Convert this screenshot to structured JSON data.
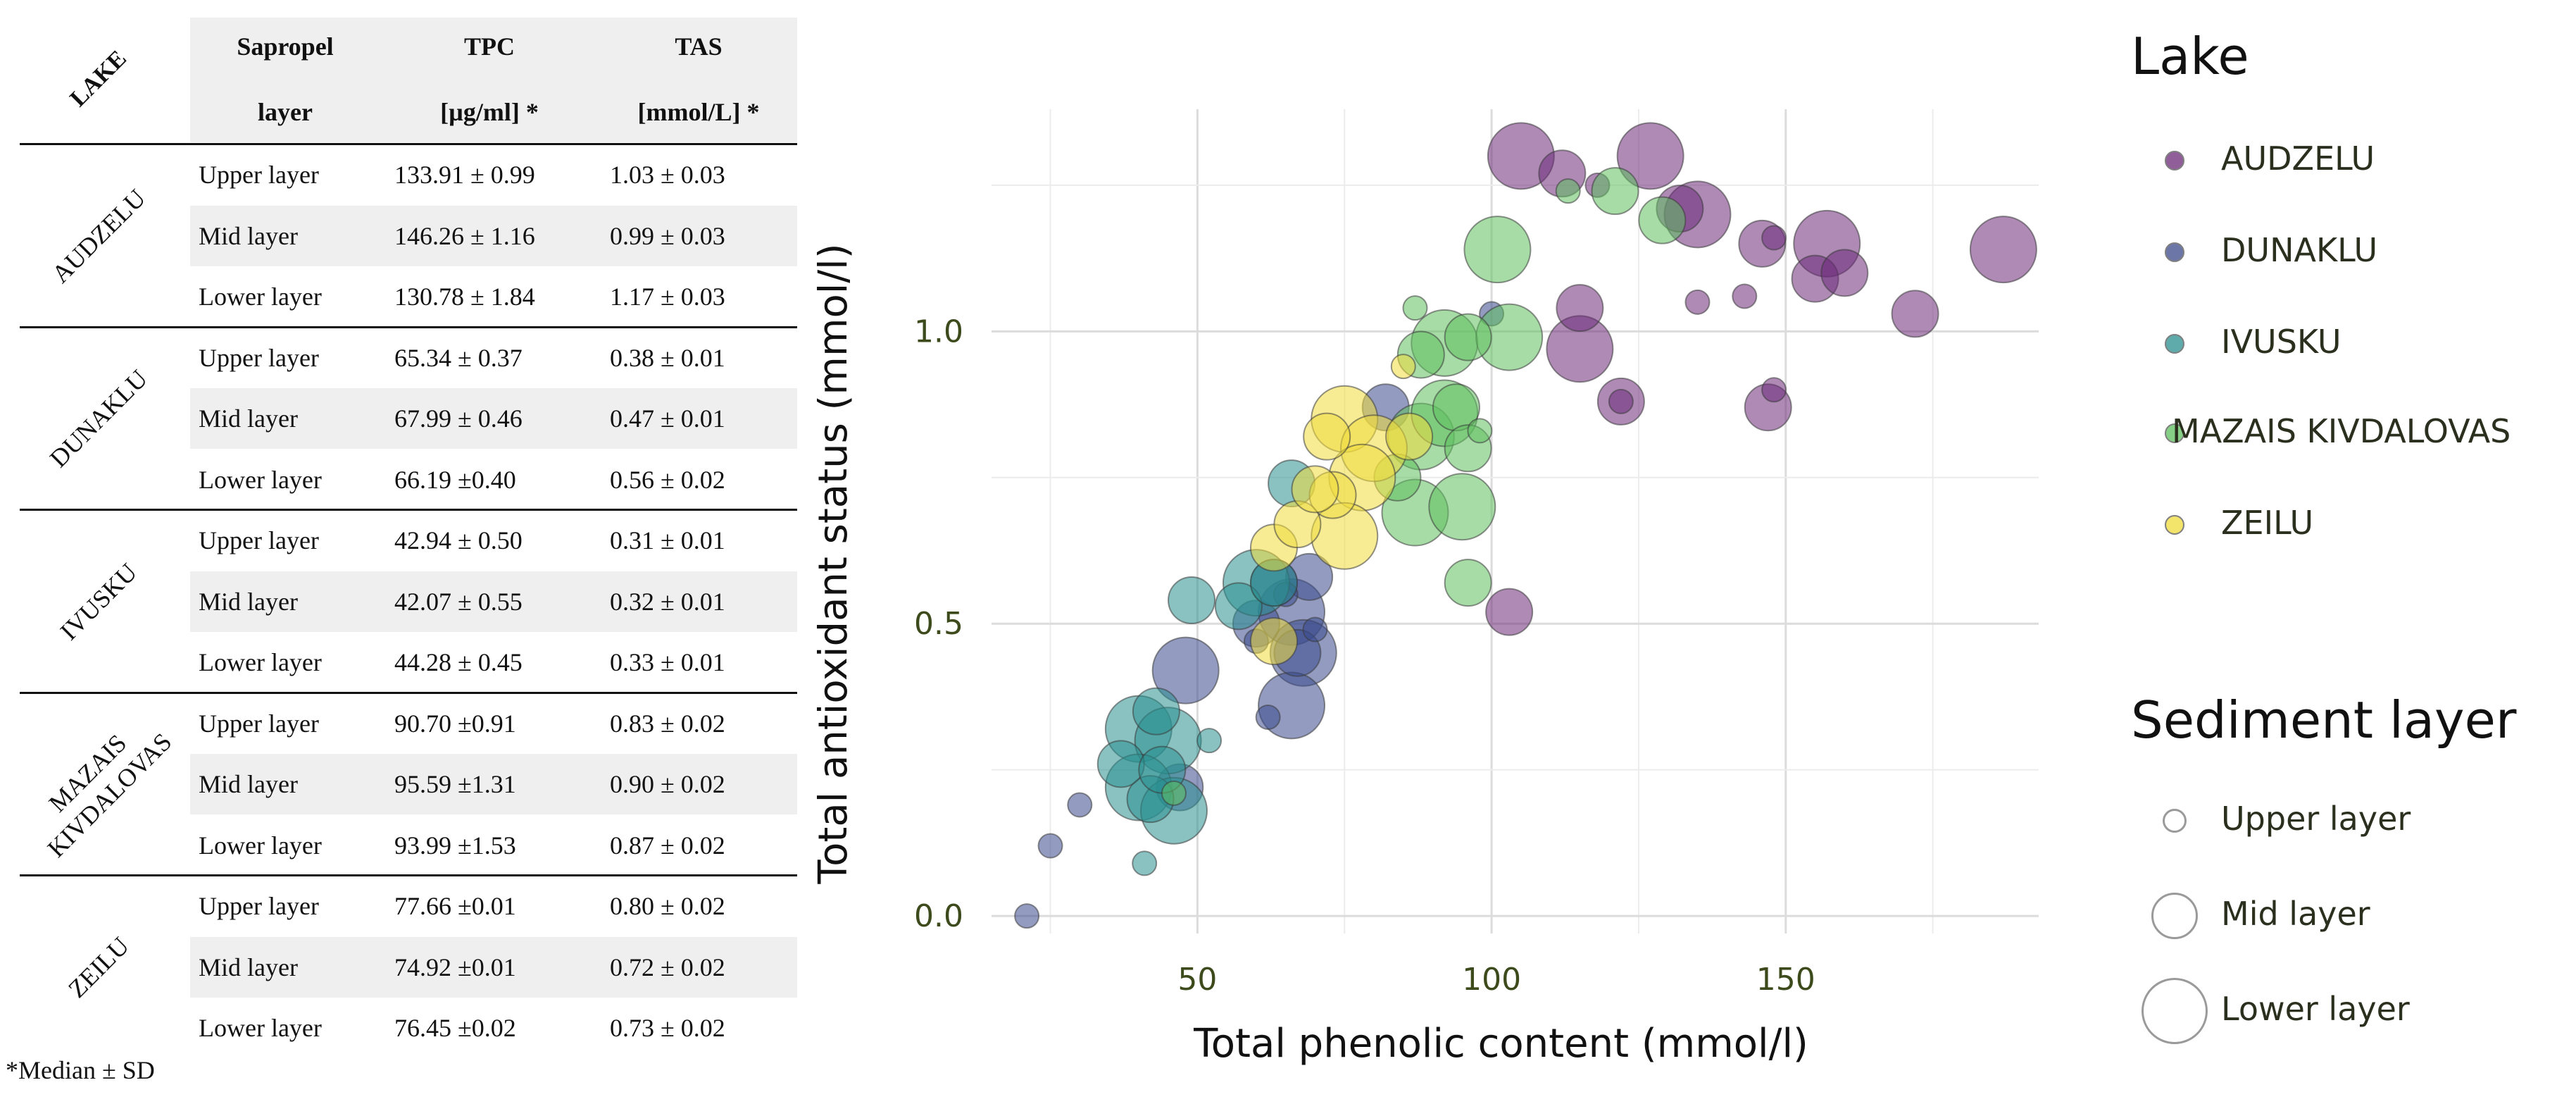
{
  "table": {
    "header": {
      "lake": "LAKE",
      "sapropel_line1": "Sapropel",
      "sapropel_line2": "layer",
      "tpc_line1": "TPC",
      "tpc_line2": "[µg/ml] *",
      "tas_line1": "TAS",
      "tas_line2": "[mmol/L] *"
    },
    "groups": [
      {
        "lake": "AUDZELU",
        "rows": [
          {
            "layer": "Upper layer",
            "tpc": "133.91 ± 0.99",
            "tas": "1.03 ± 0.03"
          },
          {
            "layer": "Mid layer",
            "tpc": "146.26 ± 1.16",
            "tas": "0.99 ± 0.03"
          },
          {
            "layer": "Lower layer",
            "tpc": "130.78 ± 1.84",
            "tas": "1.17 ± 0.03"
          }
        ]
      },
      {
        "lake": "DUNAKLU",
        "rows": [
          {
            "layer": "Upper layer",
            "tpc": "65.34 ± 0.37",
            "tas": "0.38 ± 0.01"
          },
          {
            "layer": "Mid layer",
            "tpc": "67.99 ± 0.46",
            "tas": "0.47 ± 0.01"
          },
          {
            "layer": "Lower layer",
            "tpc": "66.19 ±0.40",
            "tas": "0.56 ± 0.02"
          }
        ]
      },
      {
        "lake": "IVUSKU",
        "rows": [
          {
            "layer": "Upper layer",
            "tpc": "42.94 ± 0.50",
            "tas": "0.31 ± 0.01"
          },
          {
            "layer": "Mid layer",
            "tpc": "42.07 ± 0.55",
            "tas": "0.32 ± 0.01"
          },
          {
            "layer": "Lower layer",
            "tpc": "44.28 ± 0.45",
            "tas": "0.33 ± 0.01"
          }
        ]
      },
      {
        "lake": "MAZAIS KIVDALOVAS",
        "lake_line1": "MAZAIS",
        "lake_line2": "KIVDALOVAS",
        "rows": [
          {
            "layer": "Upper layer",
            "tpc": "90.70 ±0.91",
            "tas": "0.83 ± 0.02"
          },
          {
            "layer": "Mid layer",
            "tpc": "95.59 ±1.31",
            "tas": "0.90 ± 0.02"
          },
          {
            "layer": "Lower layer",
            "tpc": "93.99 ±1.53",
            "tas": "0.87 ± 0.02"
          }
        ]
      },
      {
        "lake": "ZEILU",
        "rows": [
          {
            "layer": "Upper layer",
            "tpc": "77.66 ±0.01",
            "tas": "0.80 ± 0.02"
          },
          {
            "layer": "Mid layer",
            "tpc": "74.92 ±0.01",
            "tas": "0.72 ± 0.02"
          },
          {
            "layer": "Lower layer",
            "tpc": "76.45 ±0.02",
            "tas": "0.73 ± 0.02"
          }
        ]
      }
    ],
    "footnote": "*Median ± SD"
  },
  "chart_data": {
    "type": "scatter",
    "xlabel": "Total phenolic content  (mmol/l)",
    "ylabel": "Total antioxidant status (mmol/l)",
    "xlim": [
      15,
      193
    ],
    "ylim": [
      -0.03,
      1.38
    ],
    "xticks": [
      50,
      100,
      150
    ],
    "yticks": [
      0.0,
      0.5,
      1.0
    ],
    "xtick_labels": [
      "50",
      "100",
      "150"
    ],
    "ytick_labels": [
      "0.0",
      "0.5",
      "1.0"
    ],
    "grid": true,
    "size_by": "Sediment layer",
    "series": [
      {
        "name": "AUDZELU",
        "color": "#6b2a78",
        "points": [
          [
            105,
            1.3,
            "Lower layer"
          ],
          [
            112,
            1.27,
            "Mid layer"
          ],
          [
            118,
            1.25,
            "Upper layer"
          ],
          [
            127,
            1.3,
            "Lower layer"
          ],
          [
            132,
            1.21,
            "Mid layer"
          ],
          [
            135,
            1.2,
            "Lower layer"
          ],
          [
            146,
            1.15,
            "Mid layer"
          ],
          [
            148,
            1.16,
            "Upper layer"
          ],
          [
            157,
            1.15,
            "Lower layer"
          ],
          [
            155,
            1.09,
            "Mid layer"
          ],
          [
            160,
            1.1,
            "Mid layer"
          ],
          [
            172,
            1.03,
            "Mid layer"
          ],
          [
            187,
            1.14,
            "Lower layer"
          ],
          [
            115,
            1.04,
            "Mid layer"
          ],
          [
            115,
            0.97,
            "Lower layer"
          ],
          [
            122,
            0.88,
            "Mid layer"
          ],
          [
            122,
            0.88,
            "Upper layer"
          ],
          [
            135,
            1.05,
            "Upper layer"
          ],
          [
            143,
            1.06,
            "Upper layer"
          ],
          [
            147,
            0.87,
            "Mid layer"
          ],
          [
            148,
            0.9,
            "Upper layer"
          ],
          [
            103,
            0.52,
            "Mid layer"
          ]
        ]
      },
      {
        "name": "DUNAKLU",
        "color": "#3b4a8c",
        "points": [
          [
            48,
            0.42,
            "Lower layer"
          ],
          [
            60,
            0.5,
            "Mid layer"
          ],
          [
            63,
            0.57,
            "Mid layer"
          ],
          [
            65,
            0.55,
            "Upper layer"
          ],
          [
            66,
            0.52,
            "Lower layer"
          ],
          [
            67,
            0.45,
            "Mid layer"
          ],
          [
            68,
            0.45,
            "Lower layer"
          ],
          [
            69,
            0.58,
            "Mid layer"
          ],
          [
            70,
            0.49,
            "Upper layer"
          ],
          [
            66,
            0.36,
            "Lower layer"
          ],
          [
            62,
            0.34,
            "Upper layer"
          ],
          [
            47,
            0.22,
            "Mid layer"
          ],
          [
            30,
            0.19,
            "Upper layer"
          ],
          [
            25,
            0.12,
            "Upper layer"
          ],
          [
            21,
            0.0,
            "Upper layer"
          ],
          [
            82,
            0.87,
            "Mid layer"
          ],
          [
            100,
            1.03,
            "Upper layer"
          ],
          [
            60,
            0.47,
            "Upper layer"
          ]
        ]
      },
      {
        "name": "IVUSKU",
        "color": "#2a8f8f",
        "points": [
          [
            40,
            0.32,
            "Lower layer"
          ],
          [
            43,
            0.35,
            "Mid layer"
          ],
          [
            45,
            0.3,
            "Lower layer"
          ],
          [
            40,
            0.22,
            "Lower layer"
          ],
          [
            42,
            0.2,
            "Mid layer"
          ],
          [
            46,
            0.18,
            "Lower layer"
          ],
          [
            41,
            0.09,
            "Upper layer"
          ],
          [
            49,
            0.54,
            "Mid layer"
          ],
          [
            57,
            0.53,
            "Mid layer"
          ],
          [
            60,
            0.57,
            "Lower layer"
          ],
          [
            63,
            0.57,
            "Mid layer"
          ],
          [
            66,
            0.74,
            "Mid layer"
          ],
          [
            37,
            0.26,
            "Mid layer"
          ],
          [
            52,
            0.3,
            "Upper layer"
          ],
          [
            44,
            0.25,
            "Mid layer"
          ]
        ]
      },
      {
        "name": "MAZAIS KIVDALOVAS",
        "color": "#5ec05e",
        "points": [
          [
            88,
            0.96,
            "Mid layer"
          ],
          [
            92,
            0.98,
            "Lower layer"
          ],
          [
            96,
            0.99,
            "Mid layer"
          ],
          [
            103,
            0.99,
            "Lower layer"
          ],
          [
            101,
            1.14,
            "Lower layer"
          ],
          [
            113,
            1.24,
            "Upper layer"
          ],
          [
            121,
            1.24,
            "Mid layer"
          ],
          [
            129,
            1.19,
            "Mid layer"
          ],
          [
            88,
            0.82,
            "Lower layer"
          ],
          [
            92,
            0.86,
            "Lower layer"
          ],
          [
            94,
            0.87,
            "Mid layer"
          ],
          [
            96,
            0.8,
            "Mid layer"
          ],
          [
            98,
            0.83,
            "Upper layer"
          ],
          [
            87,
            0.69,
            "Lower layer"
          ],
          [
            95,
            0.7,
            "Lower layer"
          ],
          [
            96,
            0.57,
            "Mid layer"
          ],
          [
            87,
            1.04,
            "Upper layer"
          ],
          [
            84,
            0.75,
            "Mid layer"
          ],
          [
            46,
            0.21,
            "Upper layer"
          ]
        ]
      },
      {
        "name": "ZEILU",
        "color": "#f0dc3c",
        "points": [
          [
            75,
            0.85,
            "Lower layer"
          ],
          [
            72,
            0.82,
            "Mid layer"
          ],
          [
            80,
            0.8,
            "Lower layer"
          ],
          [
            78,
            0.75,
            "Lower layer"
          ],
          [
            73,
            0.72,
            "Mid layer"
          ],
          [
            75,
            0.65,
            "Lower layer"
          ],
          [
            63,
            0.63,
            "Mid layer"
          ],
          [
            67,
            0.67,
            "Mid layer"
          ],
          [
            63,
            0.47,
            "Mid layer"
          ],
          [
            85,
            0.94,
            "Upper layer"
          ],
          [
            86,
            0.82,
            "Mid layer"
          ],
          [
            70,
            0.73,
            "Mid layer"
          ]
        ]
      }
    ]
  },
  "legend": {
    "lake_title": "Lake",
    "lakes": [
      {
        "label": "AUDZELU",
        "color": "#6b2a78"
      },
      {
        "label": "DUNAKLU",
        "color": "#3b4a8c"
      },
      {
        "label": "IVUSKU",
        "color": "#2a8f8f"
      },
      {
        "label": "MAZAIS KIVDALOVAS",
        "color": "#5ec05e"
      },
      {
        "label": "ZEILU",
        "color": "#f0dc3c"
      }
    ],
    "layer_title": "Sediment layer",
    "layers": [
      "Upper layer",
      "Mid layer",
      "Lower layer"
    ]
  }
}
